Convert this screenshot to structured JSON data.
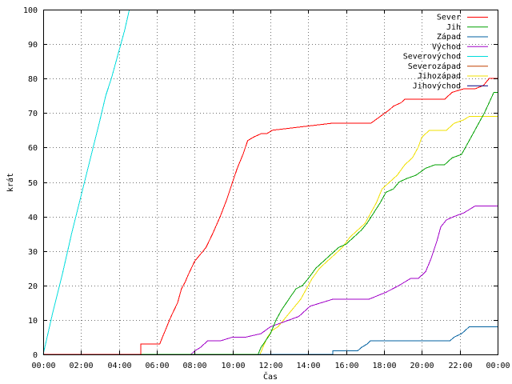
{
  "chart_data": {
    "type": "line",
    "title": "",
    "xlabel": "Čas",
    "ylabel": "krát",
    "x_tick_labels": [
      "00:00",
      "02:00",
      "04:00",
      "06:00",
      "08:00",
      "10:00",
      "12:00",
      "14:00",
      "16:00",
      "18:00",
      "20:00",
      "22:00",
      "00:00"
    ],
    "y_tick_labels": [
      "0",
      "10",
      "20",
      "30",
      "40",
      "50",
      "60",
      "70",
      "80",
      "90",
      "100"
    ],
    "xlim": [
      0,
      24
    ],
    "ylim": [
      0,
      100
    ],
    "grid": true,
    "legend_position": "top-right",
    "series": [
      {
        "name": "Sever",
        "color": "#ff0000",
        "x": [
          0,
          5.15,
          5.15,
          6.15,
          6.3,
          6.45,
          6.6,
          6.75,
          7.1,
          7.3,
          7.5,
          7.65,
          8.0,
          8.3,
          8.6,
          8.95,
          9.35,
          9.7,
          10.0,
          10.25,
          10.55,
          10.8,
          11.1,
          11.5,
          11.8,
          12.1,
          15.2,
          17.3,
          18.3,
          18.5,
          18.9,
          19.1,
          21.2,
          21.6,
          22.2,
          22.8,
          23.25,
          23.55,
          24
        ],
        "y": [
          0,
          0,
          3,
          3,
          5,
          7,
          9,
          11,
          15,
          19,
          21,
          23,
          27,
          29,
          31,
          35,
          40,
          45,
          50,
          54,
          58,
          62,
          63,
          64,
          64,
          65,
          67,
          67,
          71,
          72,
          73,
          74,
          74,
          76,
          77,
          77,
          78,
          80,
          80
        ]
      },
      {
        "name": "Jih",
        "color": "#00a000",
        "x": [
          0,
          11.35,
          11.5,
          11.75,
          12.0,
          12.3,
          12.6,
          12.85,
          13.1,
          13.35,
          13.7,
          14.0,
          14.4,
          14.8,
          15.2,
          15.6,
          16.0,
          16.4,
          16.8,
          17.1,
          17.45,
          17.8,
          18.1,
          18.5,
          18.8,
          19.2,
          19.7,
          20.2,
          20.7,
          21.2,
          21.6,
          22.1,
          22.4,
          22.7,
          23.0,
          23.3,
          23.55,
          23.8,
          24
        ],
        "y": [
          0,
          0,
          2,
          4,
          6,
          10,
          13,
          15,
          17,
          19,
          20,
          22,
          25,
          27,
          29,
          31,
          32,
          34,
          36,
          38,
          41,
          44,
          47,
          48,
          50,
          51,
          52,
          54,
          55,
          55,
          57,
          58,
          61,
          64,
          67,
          70,
          73,
          76,
          76
        ]
      },
      {
        "name": "Západ",
        "color": "#0060a0",
        "x": [
          0,
          15.3,
          15.3,
          16.6,
          16.8,
          17.1,
          17.3,
          21.5,
          21.7,
          22.1,
          22.5,
          24
        ],
        "y": [
          0,
          0,
          1,
          1,
          2,
          3,
          4,
          4,
          5,
          6,
          8,
          8
        ]
      },
      {
        "name": "Východ",
        "color": "#a000c8",
        "x": [
          0,
          7.8,
          8.0,
          8.3,
          8.7,
          9.4,
          10.0,
          10.7,
          11.5,
          12.0,
          12.5,
          13.0,
          13.5,
          14.1,
          15.3,
          16.3,
          17.2,
          18.1,
          18.8,
          19.4,
          19.8,
          20.2,
          20.5,
          20.8,
          21.0,
          21.3,
          21.7,
          22.2,
          22.5,
          22.8,
          24
        ],
        "y": [
          0,
          0,
          1,
          2,
          4,
          4,
          5,
          5,
          6,
          8,
          9,
          10,
          11,
          14,
          16,
          16,
          16,
          18,
          20,
          22,
          22,
          24,
          28,
          33,
          37,
          39,
          40,
          41,
          42,
          43,
          43
        ]
      },
      {
        "name": "Severovýchod",
        "color": "#00dcdc",
        "x": [
          0,
          0.5,
          1.0,
          1.5,
          2.0,
          2.5,
          3.0,
          3.3,
          3.6,
          4.0,
          4.3,
          4.55
        ],
        "y": [
          0,
          12,
          23,
          35,
          46,
          57,
          68,
          75,
          80,
          88,
          94,
          100
        ]
      },
      {
        "name": "Severozápad",
        "color": "#c04000",
        "x": [],
        "y": []
      },
      {
        "name": "Jihozápad",
        "color": "#f0e000",
        "x": [
          0,
          11.45,
          11.6,
          11.85,
          12.1,
          12.4,
          12.7,
          13.0,
          13.3,
          13.6,
          13.9,
          14.2,
          14.6,
          15.0,
          15.4,
          15.8,
          16.2,
          16.6,
          17.0,
          17.3,
          17.6,
          17.9,
          18.3,
          18.7,
          19.1,
          19.5,
          19.8,
          20.0,
          20.4,
          20.7,
          21.3,
          21.7,
          22.2,
          22.5,
          22.9,
          24
        ],
        "y": [
          0,
          0,
          2,
          5,
          7,
          8,
          10,
          12,
          14,
          16,
          19,
          22,
          25,
          27,
          29,
          31,
          34,
          36,
          38,
          41,
          44,
          48,
          50,
          52,
          55,
          57,
          60,
          63,
          65,
          65,
          65,
          67,
          68,
          69,
          69,
          69
        ]
      },
      {
        "name": "Jihovýchod",
        "color": "#000080",
        "x": [],
        "y": []
      }
    ]
  }
}
